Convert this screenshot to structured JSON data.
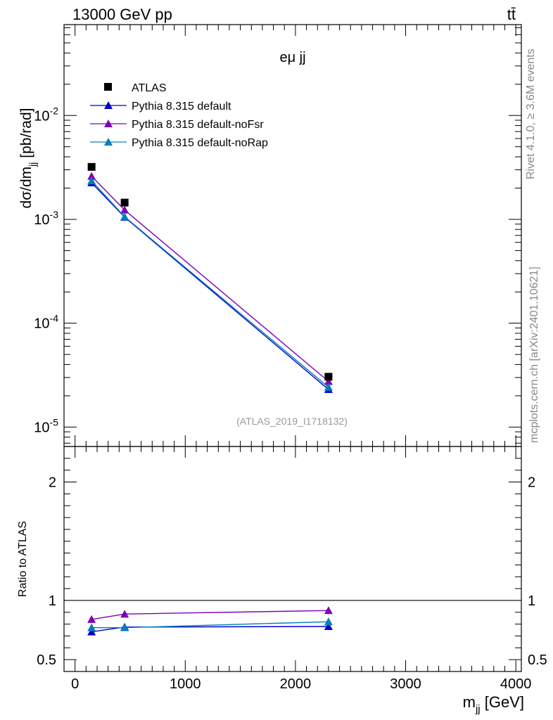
{
  "header": {
    "energy": "13000 GeV pp",
    "process": "tt̄"
  },
  "side": {
    "rivet": "Rivet 4.1.0, ≥ 3.6M events",
    "mcplots": "mcplots.cern.ch [arXiv:2401.10621]"
  },
  "chart_data": [
    {
      "type": "line",
      "title": "eμ jj",
      "xlabel": "m_jj [GeV]",
      "ylabel": "dσ/dm_jj [pb/rad]",
      "yscale": "log",
      "xlim": [
        -100,
        4050
      ],
      "ylim": [
        6.5e-06,
        0.075
      ],
      "y_ticks": [
        {
          "exp": "-5",
          "value": 1e-05
        },
        {
          "exp": "-4",
          "value": 0.0001
        },
        {
          "exp": "-3",
          "value": 0.001
        },
        {
          "exp": "-2",
          "value": 0.01
        }
      ],
      "watermark": "(ATLAS_2019_I1718132)",
      "data": {
        "name": "ATLAS",
        "x": [
          150,
          450,
          2300
        ],
        "y": [
          0.0032,
          0.00145,
          3.05e-05
        ]
      },
      "series": [
        {
          "name": "Pythia 8.315 default",
          "color": "#0000cc",
          "x": [
            150,
            450,
            2300
          ],
          "y": [
            0.00225,
            0.00105,
            2.3e-05
          ]
        },
        {
          "name": "Pythia 8.315 default-noFsr",
          "color": "#7f00b8",
          "x": [
            150,
            450,
            2300
          ],
          "y": [
            0.0026,
            0.00123,
            2.75e-05
          ]
        },
        {
          "name": "Pythia 8.315 default-noRap",
          "color": "#0080b8",
          "x": [
            150,
            450,
            2300
          ],
          "y": [
            0.00235,
            0.00106,
            2.42e-05
          ]
        }
      ]
    },
    {
      "type": "line",
      "ylabel": "Ratio to ATLAS",
      "xlabel": "m_jj [GeV]",
      "xlim": [
        -100,
        4050
      ],
      "ylim": [
        0.4,
        2.3
      ],
      "x_ticks": [
        "0",
        "1000",
        "2000",
        "3000",
        "4000"
      ],
      "x_tick_values": [
        0,
        1000,
        2000,
        3000,
        4000
      ],
      "y_ticks": [
        "0.5",
        "1",
        "2"
      ],
      "y_tick_values": [
        0.5,
        1,
        2
      ],
      "reference": 1,
      "series": [
        {
          "name": "Pythia 8.315 default",
          "color": "#0000cc",
          "x": [
            150,
            450,
            2300
          ],
          "y": [
            0.735,
            0.775,
            0.78
          ],
          "err": [
            0.01,
            0.008,
            0.03
          ]
        },
        {
          "name": "Pythia 8.315 default-noFsr",
          "color": "#7f00b8",
          "x": [
            150,
            450,
            2300
          ],
          "y": [
            0.84,
            0.885,
            0.915
          ],
          "err": [
            0.01,
            0.008,
            0.03
          ]
        },
        {
          "name": "Pythia 8.315 default-noRap",
          "color": "#0080b8",
          "x": [
            150,
            450,
            2300
          ],
          "y": [
            0.77,
            0.77,
            0.82
          ],
          "err": [
            0.01,
            0.008,
            0.03
          ]
        }
      ]
    }
  ]
}
